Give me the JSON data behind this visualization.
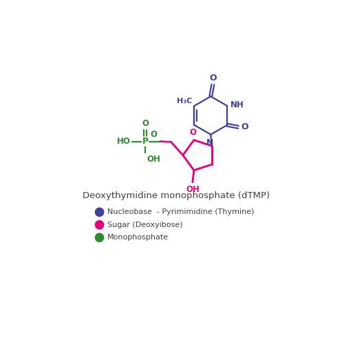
{
  "title": "Deoxythymidine monophosphate (dTMP)",
  "bg_color": "#ffffff",
  "nucleobase_color": "#3f3f9f",
  "sugar_color": "#e6007e",
  "phosphate_color": "#2e8b2e",
  "legend": [
    {
      "label": "Nucleobase  - Pyrimimidine (Thymine)",
      "color": "#3f3f9f"
    },
    {
      "label": "Sugar (Deoxyibose)",
      "color": "#e6007e"
    },
    {
      "label": "Monophosphate",
      "color": "#2e8b2e"
    }
  ],
  "figsize": [
    5,
    5
  ],
  "dpi": 100
}
